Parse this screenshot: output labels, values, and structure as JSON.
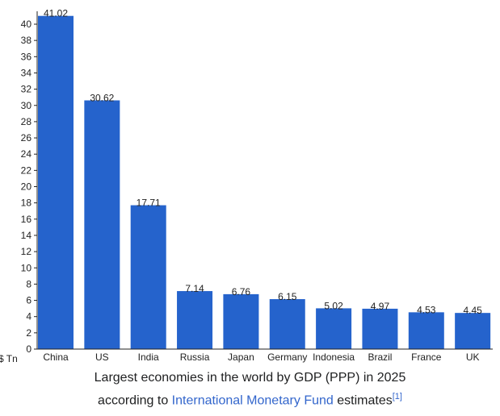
{
  "chart_data": {
    "type": "bar",
    "categories": [
      "China",
      "US",
      "India",
      "Russia",
      "Japan",
      "Germany",
      "Indonesia",
      "Brazil",
      "France",
      "UK"
    ],
    "values": [
      41.02,
      30.62,
      17.71,
      7.14,
      6.76,
      6.15,
      5.02,
      4.97,
      4.53,
      4.45
    ],
    "value_labels": [
      "41.02",
      "30.62",
      "17.71",
      "7.14",
      "6.76",
      "6.15",
      "5.02",
      "4.97",
      "4.53",
      "4.45"
    ],
    "ylabel": "$ Tn",
    "ylim": [
      0,
      41
    ],
    "yticks": [
      0,
      2,
      4,
      6,
      8,
      10,
      12,
      14,
      16,
      18,
      20,
      22,
      24,
      26,
      28,
      30,
      32,
      34,
      36,
      38,
      40
    ],
    "grid": false,
    "bar_color": "#2563cc"
  },
  "caption": {
    "line1": "Largest economies in the world by GDP (PPP) in 2025",
    "line2_prefix": "according to",
    "link_text": "International Monetary Fund",
    "line2_suffix": "estimates",
    "footnote": "[1]"
  }
}
